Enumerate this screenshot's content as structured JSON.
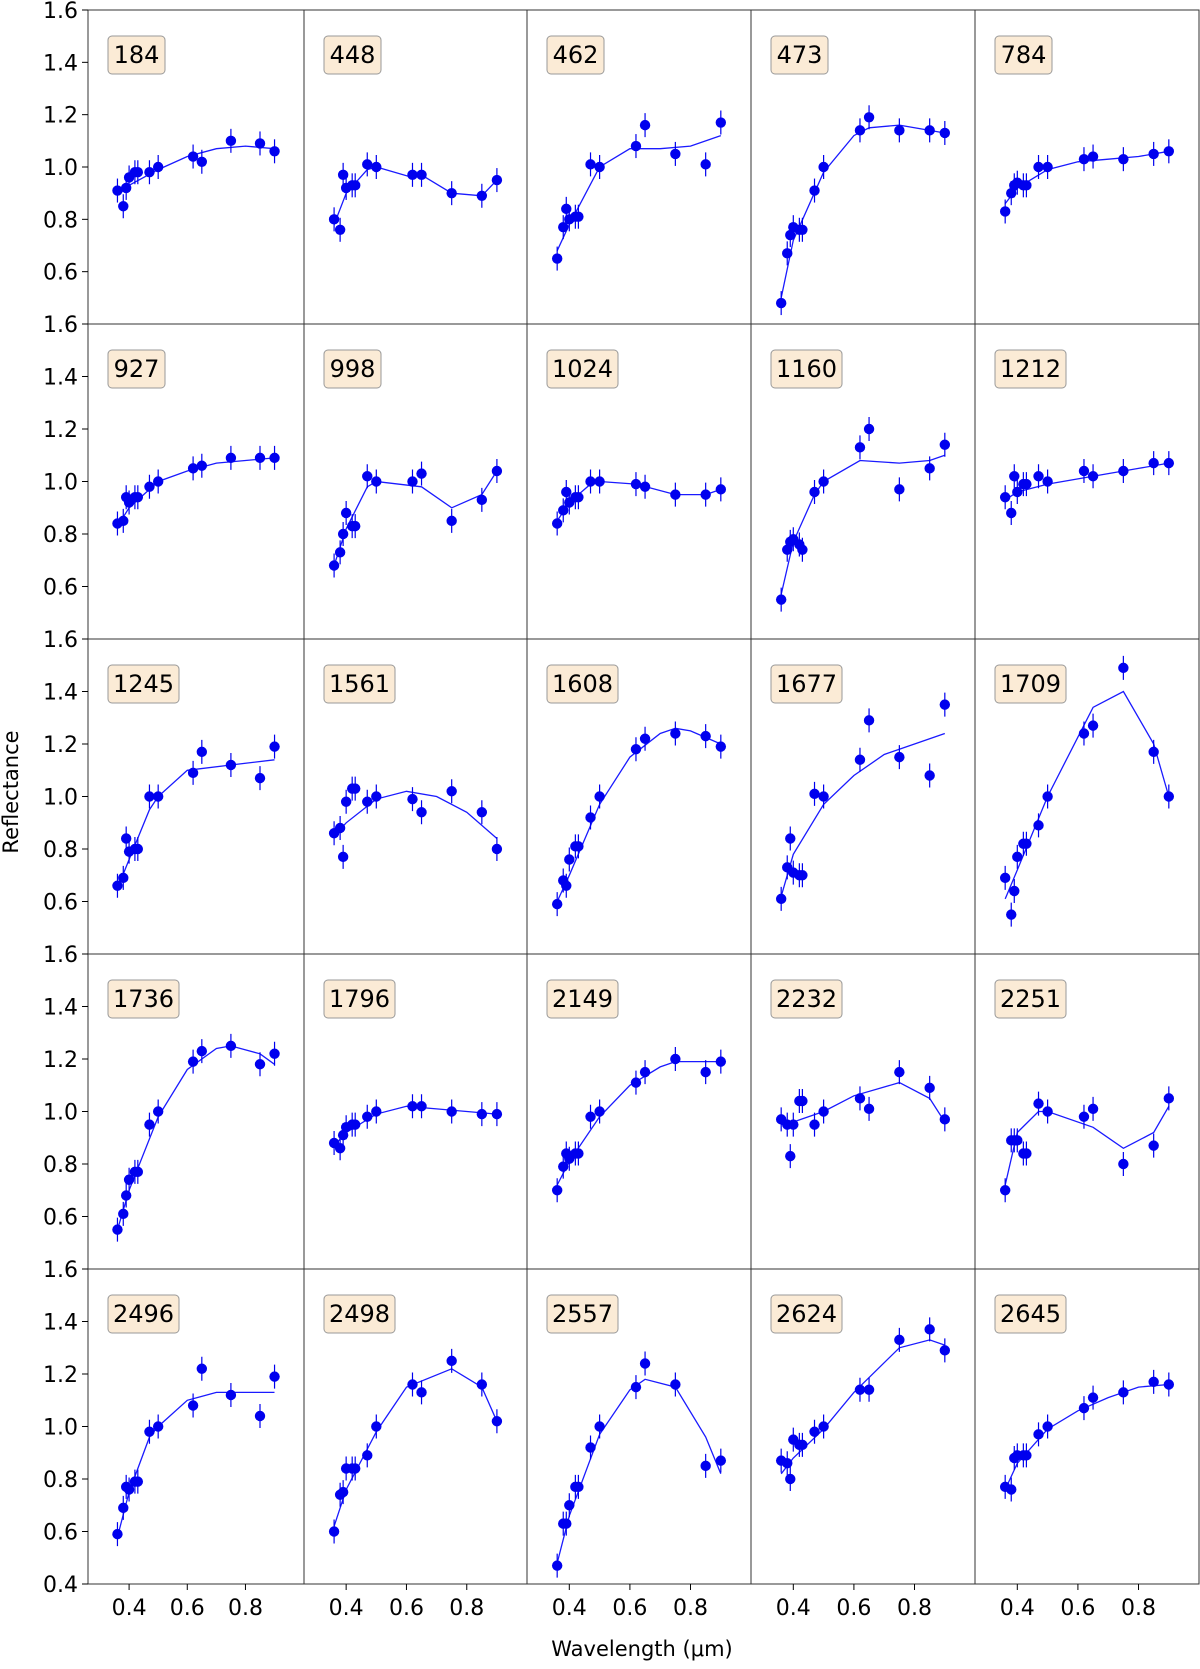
{
  "figure": {
    "xlabel": "Wavelength (μm)",
    "ylabel": "Reflectance"
  },
  "chart_data": {
    "type": "scatter",
    "layout": "small-multiples 5x5, shared axes",
    "xlim": [
      0.3,
      0.96
    ],
    "ylim": [
      0.4,
      1.6
    ],
    "xticks": [
      0.4,
      0.6,
      0.8
    ],
    "yticks": [
      0.4,
      0.6,
      0.8,
      1.0,
      1.2,
      1.4,
      1.6
    ],
    "xlabel": "Wavelength (μm)",
    "ylabel": "Reflectance",
    "grid": false,
    "colors": {
      "points": "#0000ee",
      "fit_line": "#1a1aff",
      "label_box": "#fbebd6",
      "label_border": "#999999"
    },
    "wavelengths": [
      0.36,
      0.38,
      0.39,
      0.4,
      0.42,
      0.43,
      0.47,
      0.5,
      0.62,
      0.65,
      0.75,
      0.85,
      0.9
    ],
    "panels": [
      {
        "label": "184",
        "y": [
          0.91,
          0.85,
          0.92,
          0.96,
          0.98,
          0.98,
          0.98,
          1.0,
          1.04,
          1.02,
          1.1,
          1.09,
          1.06
        ],
        "fit_x": [
          0.36,
          0.4,
          0.5,
          0.6,
          0.7,
          0.8,
          0.9
        ],
        "fit_y": [
          0.9,
          0.93,
          0.99,
          1.04,
          1.07,
          1.08,
          1.07
        ]
      },
      {
        "label": "448",
        "y": [
          0.8,
          0.76,
          0.97,
          0.92,
          0.93,
          0.93,
          1.01,
          1.0,
          0.97,
          0.97,
          0.9,
          0.89,
          0.95
        ],
        "fit_x": [
          0.36,
          0.4,
          0.47,
          0.5,
          0.62,
          0.65,
          0.75,
          0.85,
          0.9
        ],
        "fit_y": [
          0.78,
          0.9,
          0.99,
          1.0,
          0.96,
          0.97,
          0.9,
          0.89,
          0.95
        ]
      },
      {
        "label": "462",
        "y": [
          0.65,
          0.77,
          0.84,
          0.8,
          0.81,
          0.81,
          1.01,
          1.0,
          1.08,
          1.16,
          1.05,
          1.01,
          1.17
        ],
        "fit_x": [
          0.36,
          0.4,
          0.5,
          0.6,
          0.7,
          0.8,
          0.9
        ],
        "fit_y": [
          0.68,
          0.78,
          1.0,
          1.07,
          1.07,
          1.08,
          1.12
        ]
      },
      {
        "label": "473",
        "y": [
          0.48,
          0.67,
          0.74,
          0.77,
          0.76,
          0.76,
          0.91,
          1.0,
          1.14,
          1.19,
          1.14,
          1.14,
          1.13
        ],
        "fit_x": [
          0.36,
          0.4,
          0.5,
          0.6,
          0.65,
          0.75,
          0.85,
          0.9
        ],
        "fit_y": [
          0.5,
          0.72,
          0.98,
          1.12,
          1.15,
          1.16,
          1.14,
          1.13
        ]
      },
      {
        "label": "784",
        "y": [
          0.83,
          0.9,
          0.93,
          0.94,
          0.93,
          0.93,
          1.0,
          1.0,
          1.03,
          1.04,
          1.03,
          1.05,
          1.06
        ],
        "fit_x": [
          0.36,
          0.4,
          0.5,
          0.6,
          0.7,
          0.8,
          0.9
        ],
        "fit_y": [
          0.86,
          0.92,
          0.99,
          1.02,
          1.03,
          1.04,
          1.06
        ]
      },
      {
        "label": "927",
        "y": [
          0.84,
          0.85,
          0.94,
          0.92,
          0.94,
          0.94,
          0.98,
          1.0,
          1.05,
          1.06,
          1.09,
          1.09,
          1.09
        ],
        "fit_x": [
          0.36,
          0.4,
          0.5,
          0.6,
          0.7,
          0.8,
          0.9
        ],
        "fit_y": [
          0.83,
          0.9,
          1.0,
          1.04,
          1.07,
          1.08,
          1.09
        ]
      },
      {
        "label": "998",
        "y": [
          0.68,
          0.73,
          0.8,
          0.88,
          0.83,
          0.83,
          1.02,
          1.0,
          1.0,
          1.03,
          0.85,
          0.93,
          1.04
        ],
        "fit_x": [
          0.36,
          0.4,
          0.47,
          0.5,
          0.65,
          0.75,
          0.85,
          0.9
        ],
        "fit_y": [
          0.68,
          0.82,
          0.98,
          1.0,
          0.98,
          0.9,
          0.95,
          1.04
        ]
      },
      {
        "label": "1024",
        "y": [
          0.84,
          0.89,
          0.96,
          0.92,
          0.94,
          0.94,
          1.0,
          1.0,
          0.99,
          0.98,
          0.95,
          0.95,
          0.97
        ],
        "fit_x": [
          0.36,
          0.4,
          0.47,
          0.5,
          0.62,
          0.75,
          0.85,
          0.9
        ],
        "fit_y": [
          0.85,
          0.92,
          0.99,
          1.0,
          0.99,
          0.95,
          0.95,
          0.97
        ]
      },
      {
        "label": "1160",
        "y": [
          0.55,
          0.74,
          0.77,
          0.78,
          0.76,
          0.74,
          0.96,
          1.0,
          1.13,
          1.2,
          0.97,
          1.05,
          1.14
        ],
        "fit_x": [
          0.36,
          0.4,
          0.47,
          0.5,
          0.62,
          0.75,
          0.85,
          0.9
        ],
        "fit_y": [
          0.57,
          0.77,
          0.95,
          1.0,
          1.08,
          1.07,
          1.08,
          1.1
        ]
      },
      {
        "label": "1212",
        "y": [
          0.94,
          0.88,
          1.02,
          0.96,
          0.99,
          0.99,
          1.02,
          1.0,
          1.04,
          1.02,
          1.04,
          1.07,
          1.07
        ],
        "fit_x": [
          0.36,
          0.4,
          0.5,
          0.6,
          0.7,
          0.8,
          0.9
        ],
        "fit_y": [
          0.93,
          0.96,
          0.99,
          1.01,
          1.03,
          1.05,
          1.07
        ]
      },
      {
        "label": "1245",
        "y": [
          0.66,
          0.69,
          0.84,
          0.79,
          0.8,
          0.8,
          1.0,
          1.0,
          1.09,
          1.17,
          1.12,
          1.07,
          1.19
        ],
        "fit_x": [
          0.36,
          0.4,
          0.47,
          0.5,
          0.6,
          0.75,
          0.9
        ],
        "fit_y": [
          0.65,
          0.76,
          0.95,
          1.0,
          1.1,
          1.12,
          1.14
        ]
      },
      {
        "label": "1561",
        "y": [
          0.86,
          0.88,
          0.77,
          0.98,
          1.03,
          1.03,
          0.98,
          1.0,
          0.99,
          0.94,
          1.02,
          0.94,
          0.8
        ],
        "fit_x": [
          0.36,
          0.4,
          0.5,
          0.6,
          0.7,
          0.8,
          0.9
        ],
        "fit_y": [
          0.85,
          0.9,
          0.99,
          1.02,
          1.0,
          0.94,
          0.84
        ]
      },
      {
        "label": "1608",
        "y": [
          0.59,
          0.68,
          0.66,
          0.76,
          0.81,
          0.81,
          0.92,
          1.0,
          1.18,
          1.22,
          1.24,
          1.23,
          1.19
        ],
        "fit_x": [
          0.36,
          0.4,
          0.5,
          0.6,
          0.7,
          0.75,
          0.8,
          0.9
        ],
        "fit_y": [
          0.6,
          0.7,
          0.97,
          1.15,
          1.24,
          1.26,
          1.25,
          1.2
        ]
      },
      {
        "label": "1677",
        "y": [
          0.61,
          0.73,
          0.84,
          0.71,
          0.7,
          0.7,
          1.01,
          1.0,
          1.14,
          1.29,
          1.15,
          1.08,
          1.35
        ],
        "fit_x": [
          0.36,
          0.4,
          0.5,
          0.6,
          0.7,
          0.8,
          0.9
        ],
        "fit_y": [
          0.62,
          0.78,
          0.97,
          1.08,
          1.16,
          1.2,
          1.24
        ]
      },
      {
        "label": "1709",
        "y": [
          0.69,
          0.55,
          0.64,
          0.77,
          0.82,
          0.82,
          0.89,
          1.0,
          1.24,
          1.27,
          1.49,
          1.17,
          1.0
        ],
        "fit_x": [
          0.36,
          0.4,
          0.5,
          0.65,
          0.75,
          0.85,
          0.9
        ],
        "fit_y": [
          0.61,
          0.72,
          1.0,
          1.34,
          1.4,
          1.2,
          1.0
        ]
      },
      {
        "label": "1736",
        "y": [
          0.55,
          0.61,
          0.68,
          0.74,
          0.77,
          0.77,
          0.95,
          1.0,
          1.19,
          1.23,
          1.25,
          1.18,
          1.22
        ],
        "fit_x": [
          0.36,
          0.4,
          0.5,
          0.6,
          0.7,
          0.75,
          0.85,
          0.9
        ],
        "fit_y": [
          0.55,
          0.7,
          0.98,
          1.16,
          1.24,
          1.25,
          1.22,
          1.18
        ]
      },
      {
        "label": "1796",
        "y": [
          0.88,
          0.86,
          0.91,
          0.94,
          0.95,
          0.95,
          0.98,
          1.0,
          1.02,
          1.02,
          1.0,
          0.99,
          0.99
        ],
        "fit_x": [
          0.36,
          0.4,
          0.5,
          0.6,
          0.7,
          0.8,
          0.9
        ],
        "fit_y": [
          0.87,
          0.92,
          0.99,
          1.02,
          1.01,
          1.0,
          0.99
        ]
      },
      {
        "label": "2149",
        "y": [
          0.7,
          0.79,
          0.84,
          0.82,
          0.84,
          0.84,
          0.98,
          1.0,
          1.11,
          1.15,
          1.2,
          1.15,
          1.19
        ],
        "fit_x": [
          0.36,
          0.4,
          0.5,
          0.6,
          0.7,
          0.75,
          0.9
        ],
        "fit_y": [
          0.72,
          0.81,
          0.98,
          1.1,
          1.17,
          1.19,
          1.19
        ]
      },
      {
        "label": "2232",
        "y": [
          0.97,
          0.95,
          0.83,
          0.95,
          1.04,
          1.04,
          0.95,
          1.0,
          1.05,
          1.01,
          1.15,
          1.09,
          0.97
        ],
        "fit_x": [
          0.36,
          0.4,
          0.5,
          0.6,
          0.75,
          0.85,
          0.9
        ],
        "fit_y": [
          0.95,
          0.96,
          1.0,
          1.06,
          1.11,
          1.05,
          0.96
        ]
      },
      {
        "label": "2251",
        "y": [
          0.7,
          0.89,
          0.89,
          0.89,
          0.84,
          0.84,
          1.03,
          1.0,
          0.98,
          1.01,
          0.8,
          0.87,
          1.05
        ],
        "fit_x": [
          0.36,
          0.4,
          0.47,
          0.5,
          0.65,
          0.75,
          0.85,
          0.9
        ],
        "fit_y": [
          0.72,
          0.92,
          1.0,
          1.0,
          0.94,
          0.86,
          0.92,
          1.02
        ]
      },
      {
        "label": "2496",
        "y": [
          0.59,
          0.69,
          0.77,
          0.76,
          0.79,
          0.79,
          0.98,
          1.0,
          1.08,
          1.22,
          1.12,
          1.04,
          1.19
        ],
        "fit_x": [
          0.36,
          0.4,
          0.47,
          0.5,
          0.6,
          0.7,
          0.9
        ],
        "fit_y": [
          0.58,
          0.75,
          0.96,
          1.0,
          1.1,
          1.13,
          1.13
        ]
      },
      {
        "label": "2498",
        "y": [
          0.6,
          0.74,
          0.75,
          0.84,
          0.84,
          0.84,
          0.89,
          1.0,
          1.16,
          1.13,
          1.25,
          1.16,
          1.02
        ],
        "fit_x": [
          0.36,
          0.4,
          0.5,
          0.6,
          0.75,
          0.85,
          0.9
        ],
        "fit_y": [
          0.62,
          0.76,
          0.98,
          1.15,
          1.22,
          1.15,
          1.02
        ]
      },
      {
        "label": "2557",
        "y": [
          0.47,
          0.63,
          0.63,
          0.7,
          0.77,
          0.77,
          0.92,
          1.0,
          1.15,
          1.24,
          1.16,
          0.85,
          0.87
        ],
        "fit_x": [
          0.36,
          0.4,
          0.5,
          0.6,
          0.65,
          0.75,
          0.85,
          0.9
        ],
        "fit_y": [
          0.48,
          0.66,
          0.97,
          1.14,
          1.18,
          1.15,
          0.96,
          0.82
        ]
      },
      {
        "label": "2624",
        "y": [
          0.87,
          0.86,
          0.8,
          0.95,
          0.93,
          0.93,
          0.98,
          1.0,
          1.14,
          1.14,
          1.33,
          1.37,
          1.29
        ],
        "fit_x": [
          0.36,
          0.4,
          0.5,
          0.6,
          0.75,
          0.85,
          0.9
        ],
        "fit_y": [
          0.82,
          0.88,
          0.99,
          1.13,
          1.3,
          1.33,
          1.31
        ]
      },
      {
        "label": "2645",
        "y": [
          0.77,
          0.76,
          0.88,
          0.89,
          0.89,
          0.89,
          0.97,
          1.0,
          1.07,
          1.11,
          1.13,
          1.17,
          1.16
        ],
        "fit_x": [
          0.36,
          0.4,
          0.5,
          0.6,
          0.7,
          0.8,
          0.9
        ],
        "fit_y": [
          0.76,
          0.86,
          0.99,
          1.06,
          1.11,
          1.15,
          1.16
        ]
      }
    ]
  }
}
